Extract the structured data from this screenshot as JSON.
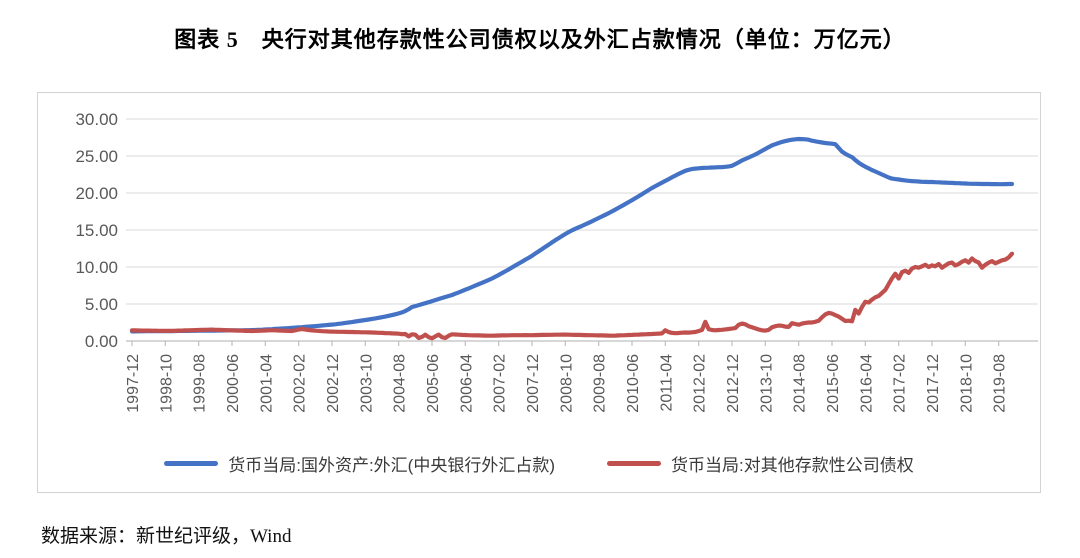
{
  "title": "图表 5　央行对其他存款性公司债权以及外汇占款情况（单位：万亿元）",
  "source": "数据来源：新世纪评级，Wind",
  "colors": {
    "fx_line": "#4472C4",
    "claims_line": "#C0504D",
    "gridline": "#D9D9D9",
    "axis": "#BFBFBF",
    "axis_label": "#595959"
  },
  "chart_data": {
    "type": "line",
    "title": "图表 5　央行对其他存款性公司债权以及外汇占款情况（单位：万亿元）",
    "xlabel": "",
    "ylabel": "",
    "ylim": [
      0,
      30
    ],
    "y_ticks": [
      0,
      5,
      10,
      15,
      20,
      25,
      30
    ],
    "y_tick_labels": [
      "0.00",
      "5.00",
      "10.00",
      "15.00",
      "20.00",
      "25.00",
      "30.00"
    ],
    "grid": "horizontal",
    "legend_position": "bottom",
    "x_start": "1997-12",
    "x_frequency": "monthly",
    "x_tick_interval": 10,
    "x_tick_labels": [
      "1997-12",
      "1998-10",
      "1999-08",
      "2000-06",
      "2001-04",
      "2002-02",
      "2002-12",
      "2003-10",
      "2004-08",
      "2005-06",
      "2006-04",
      "2007-02",
      "2007-12",
      "2008-10",
      "2009-08",
      "2010-06",
      "2011-04",
      "2012-02",
      "2012-12",
      "2013-10",
      "2014-08",
      "2015-06",
      "2016-04",
      "2017-02",
      "2017-12",
      "2018-10",
      "2019-08"
    ],
    "gridline_color": "#D9D9D9",
    "axis_color": "#BFBFBF",
    "series": [
      {
        "name": "货币当局:国外资产:外汇(中央银行外汇占款)",
        "color": "#4472C4",
        "values": [
          1.3,
          1.3,
          1.31,
          1.31,
          1.32,
          1.32,
          1.33,
          1.33,
          1.33,
          1.34,
          1.34,
          1.34,
          1.34,
          1.35,
          1.36,
          1.36,
          1.37,
          1.37,
          1.38,
          1.38,
          1.39,
          1.39,
          1.4,
          1.4,
          1.41,
          1.41,
          1.42,
          1.42,
          1.43,
          1.43,
          1.44,
          1.44,
          1.45,
          1.45,
          1.46,
          1.46,
          1.47,
          1.49,
          1.51,
          1.53,
          1.55,
          1.58,
          1.6,
          1.63,
          1.66,
          1.69,
          1.72,
          1.75,
          1.78,
          1.81,
          1.84,
          1.87,
          1.91,
          1.94,
          1.98,
          2.02,
          2.06,
          2.1,
          2.14,
          2.17,
          2.21,
          2.26,
          2.32,
          2.38,
          2.44,
          2.5,
          2.56,
          2.63,
          2.7,
          2.77,
          2.84,
          2.91,
          2.98,
          3.05,
          3.13,
          3.21,
          3.3,
          3.4,
          3.5,
          3.61,
          3.73,
          3.86,
          4.05,
          4.3,
          4.59,
          4.72,
          4.85,
          4.98,
          5.11,
          5.25,
          5.39,
          5.53,
          5.67,
          5.81,
          5.95,
          6.08,
          6.21,
          6.39,
          6.57,
          6.75,
          6.93,
          7.11,
          7.3,
          7.49,
          7.68,
          7.87,
          8.06,
          8.25,
          8.44,
          8.68,
          8.92,
          9.17,
          9.42,
          9.68,
          9.94,
          10.2,
          10.46,
          10.72,
          10.98,
          11.25,
          11.52,
          11.82,
          12.12,
          12.42,
          12.72,
          13.02,
          13.32,
          13.62,
          13.9,
          14.18,
          14.46,
          14.72,
          14.96,
          15.16,
          15.36,
          15.56,
          15.76,
          15.97,
          16.18,
          16.4,
          16.62,
          16.84,
          17.06,
          17.28,
          17.51,
          17.76,
          18.01,
          18.26,
          18.51,
          18.77,
          19.03,
          19.3,
          19.57,
          19.84,
          20.12,
          20.4,
          20.68,
          20.92,
          21.16,
          21.4,
          21.64,
          21.88,
          22.12,
          22.35,
          22.58,
          22.8,
          23.0,
          23.14,
          23.24,
          23.3,
          23.34,
          23.38,
          23.4,
          23.42,
          23.44,
          23.46,
          23.48,
          23.5,
          23.54,
          23.6,
          23.67,
          23.9,
          24.15,
          24.4,
          24.6,
          24.8,
          25.0,
          25.2,
          25.45,
          25.7,
          25.95,
          26.2,
          26.43,
          26.6,
          26.76,
          26.9,
          27.02,
          27.12,
          27.2,
          27.26,
          27.3,
          27.29,
          27.26,
          27.2,
          27.07,
          26.98,
          26.9,
          26.82,
          26.76,
          26.7,
          26.66,
          26.6,
          26.1,
          25.6,
          25.3,
          25.05,
          24.85,
          24.45,
          24.1,
          23.8,
          23.55,
          23.32,
          23.1,
          22.9,
          22.7,
          22.5,
          22.3,
          22.1,
          21.94,
          21.88,
          21.82,
          21.76,
          21.7,
          21.65,
          21.61,
          21.58,
          21.55,
          21.52,
          21.5,
          21.49,
          21.48,
          21.46,
          21.44,
          21.42,
          21.4,
          21.38,
          21.36,
          21.34,
          21.32,
          21.3,
          21.28,
          21.26,
          21.25,
          21.24,
          21.23,
          21.22,
          21.21,
          21.21,
          21.2,
          21.2,
          21.19,
          21.19,
          21.2,
          21.21,
          21.22
        ]
      },
      {
        "name": "货币当局:对其他存款性公司债权",
        "color": "#C0504D",
        "values": [
          1.44,
          1.43,
          1.42,
          1.41,
          1.41,
          1.4,
          1.39,
          1.39,
          1.38,
          1.38,
          1.37,
          1.37,
          1.37,
          1.38,
          1.4,
          1.41,
          1.43,
          1.44,
          1.46,
          1.47,
          1.49,
          1.5,
          1.52,
          1.53,
          1.54,
          1.52,
          1.5,
          1.48,
          1.47,
          1.45,
          1.43,
          1.42,
          1.4,
          1.39,
          1.37,
          1.36,
          1.35,
          1.36,
          1.38,
          1.4,
          1.42,
          1.44,
          1.45,
          1.44,
          1.42,
          1.4,
          1.38,
          1.36,
          1.35,
          1.45,
          1.55,
          1.62,
          1.56,
          1.49,
          1.43,
          1.39,
          1.36,
          1.33,
          1.31,
          1.29,
          1.27,
          1.26,
          1.25,
          1.24,
          1.23,
          1.22,
          1.21,
          1.2,
          1.19,
          1.18,
          1.17,
          1.16,
          1.15,
          1.13,
          1.11,
          1.09,
          1.07,
          1.05,
          1.03,
          1.01,
          0.99,
          0.92,
          0.95,
          0.62,
          0.9,
          0.85,
          0.4,
          0.56,
          0.85,
          0.52,
          0.36,
          0.62,
          0.86,
          0.52,
          0.4,
          0.72,
          0.9,
          0.88,
          0.85,
          0.83,
          0.81,
          0.79,
          0.77,
          0.76,
          0.75,
          0.74,
          0.73,
          0.72,
          0.72,
          0.73,
          0.74,
          0.75,
          0.76,
          0.77,
          0.78,
          0.78,
          0.79,
          0.79,
          0.8,
          0.79,
          0.79,
          0.8,
          0.81,
          0.82,
          0.83,
          0.84,
          0.84,
          0.85,
          0.85,
          0.86,
          0.86,
          0.85,
          0.84,
          0.83,
          0.82,
          0.81,
          0.8,
          0.79,
          0.78,
          0.77,
          0.76,
          0.75,
          0.74,
          0.73,
          0.72,
          0.73,
          0.75,
          0.77,
          0.79,
          0.81,
          0.83,
          0.85,
          0.87,
          0.89,
          0.91,
          0.93,
          0.95,
          0.97,
          1.0,
          1.03,
          1.45,
          1.2,
          1.1,
          1.06,
          1.08,
          1.12,
          1.15,
          1.14,
          1.17,
          1.22,
          1.35,
          1.48,
          2.6,
          1.6,
          1.48,
          1.45,
          1.48,
          1.52,
          1.57,
          1.62,
          1.67,
          1.75,
          2.2,
          2.35,
          2.25,
          2.0,
          1.85,
          1.7,
          1.55,
          1.45,
          1.4,
          1.5,
          1.85,
          2.0,
          2.1,
          2.05,
          1.95,
          1.9,
          2.4,
          2.3,
          2.2,
          2.35,
          2.45,
          2.5,
          2.5,
          2.6,
          2.75,
          3.2,
          3.6,
          3.8,
          3.7,
          3.5,
          3.3,
          3.0,
          2.7,
          2.75,
          2.66,
          4.2,
          3.7,
          4.6,
          5.3,
          5.2,
          5.6,
          5.9,
          6.1,
          6.5,
          6.9,
          7.7,
          8.47,
          9.1,
          8.45,
          9.3,
          9.5,
          9.2,
          9.8,
          10.0,
          9.9,
          10.1,
          10.3,
          10.0,
          10.22,
          10.1,
          10.4,
          9.9,
          10.2,
          10.5,
          10.6,
          10.2,
          10.4,
          10.7,
          10.9,
          10.6,
          11.15,
          10.8,
          10.6,
          9.9,
          10.3,
          10.6,
          10.8,
          10.5,
          10.7,
          10.9,
          11.0,
          11.3,
          11.8
        ]
      }
    ]
  }
}
